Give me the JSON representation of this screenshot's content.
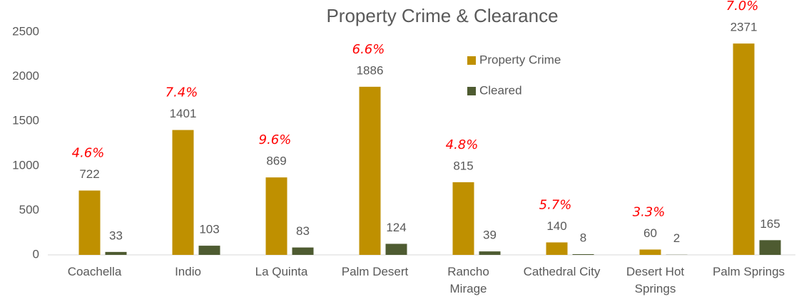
{
  "chart_data": {
    "type": "bar",
    "title": "Property Crime & Clearance",
    "categories": [
      "Coachella",
      "Indio",
      "La Quinta",
      "Palm Desert",
      "Rancho Mirage",
      "Cathedral City",
      "Desert Hot Springs",
      "Palm Springs"
    ],
    "series": [
      {
        "name": "Property Crime",
        "color": "#bf9000",
        "values": [
          722,
          1401,
          869,
          1886,
          815,
          140,
          60,
          2371
        ]
      },
      {
        "name": "Cleared",
        "color": "#4e5b31",
        "values": [
          33,
          103,
          83,
          124,
          39,
          8,
          2,
          165
        ]
      }
    ],
    "annotations": [
      "4.6%",
      "7.4%",
      "9.6%",
      "6.6%",
      "4.8%",
      "5.7%",
      "3.3%",
      "7.0%"
    ],
    "ylim": [
      0,
      2500
    ],
    "yticks": [
      0,
      500,
      1000,
      1500,
      2000,
      2500
    ],
    "grid": false,
    "legend": "top-center"
  }
}
